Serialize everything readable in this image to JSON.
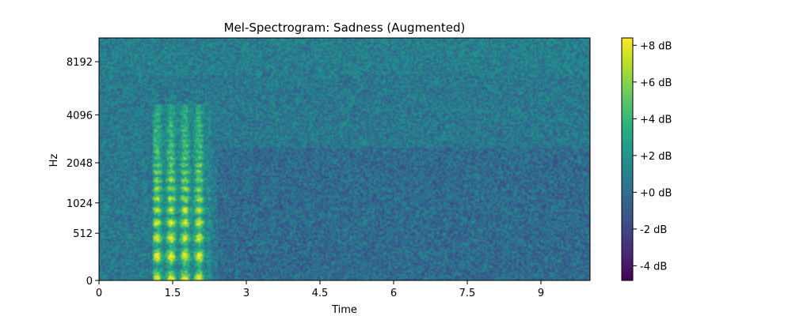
{
  "chart_data": {
    "type": "heatmap",
    "title": "Mel-Spectrogram: Sadness (Augmented)",
    "xlabel": "Time",
    "ylabel": "Hz",
    "xlim": [
      0,
      10
    ],
    "x_ticks": [
      {
        "value": 0,
        "label": "0"
      },
      {
        "value": 1.5,
        "label": "1.5"
      },
      {
        "value": 3,
        "label": "3"
      },
      {
        "value": 4.5,
        "label": "4.5"
      },
      {
        "value": 6,
        "label": "6"
      },
      {
        "value": 7.5,
        "label": "7.5"
      },
      {
        "value": 9,
        "label": "9"
      }
    ],
    "y_scale": "mel",
    "ylim": [
      0,
      11025
    ],
    "y_ticks": [
      {
        "value": 0,
        "label": "0"
      },
      {
        "value": 512,
        "label": "512"
      },
      {
        "value": 1024,
        "label": "1024"
      },
      {
        "value": 2048,
        "label": "2048"
      },
      {
        "value": 4096,
        "label": "4096"
      },
      {
        "value": 8192,
        "label": "8192"
      }
    ],
    "colormap": "viridis",
    "colorbar": {
      "vmin": -4.8,
      "vmax": 8.4,
      "ticks": [
        {
          "value": 8,
          "label": "+8 dB"
        },
        {
          "value": 6,
          "label": "+6 dB"
        },
        {
          "value": 4,
          "label": "+4 dB"
        },
        {
          "value": 2,
          "label": "+2 dB"
        },
        {
          "value": 0,
          "label": "+0 dB"
        },
        {
          "value": -2,
          "label": "-2 dB"
        },
        {
          "value": -4,
          "label": "-4 dB"
        }
      ]
    },
    "speech_region_time": [
      1.1,
      2.3
    ],
    "background_level_db": 0.5
  }
}
